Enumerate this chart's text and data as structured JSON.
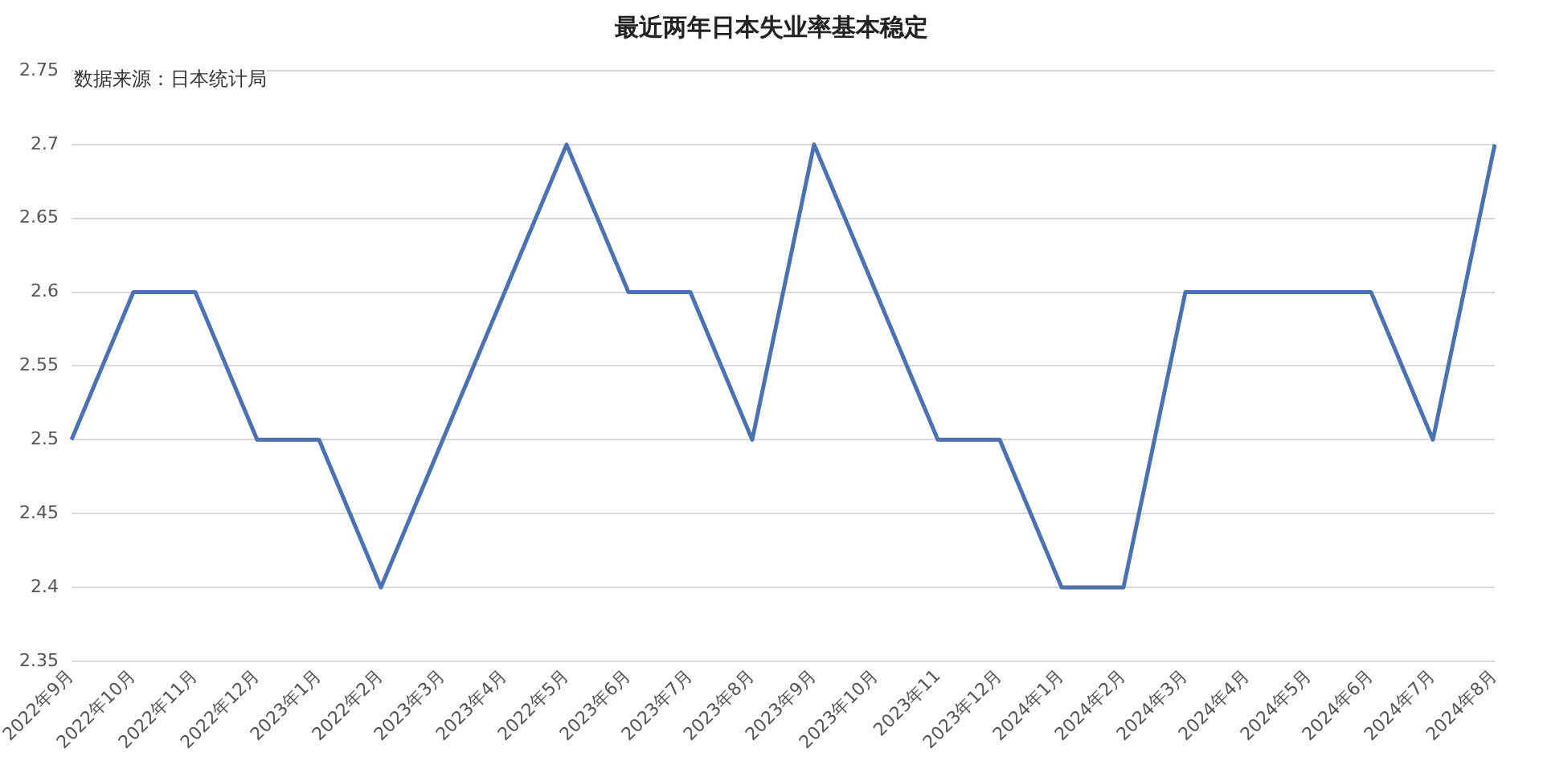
{
  "chart_data": {
    "type": "line",
    "title": "最近两年日本失业率基本稳定",
    "annotations": [
      "数据来源：日本统计局"
    ],
    "categories": [
      "2022年9月",
      "2022年10月",
      "2022年11月",
      "2022年12月",
      "2023年1月",
      "2022年2月",
      "2023年3月",
      "2023年4月",
      "2022年5月",
      "2023年6月",
      "2023年7月",
      "2023年8月",
      "2023年9月",
      "2023年10月",
      "2023年11",
      "2023年12月",
      "2024年1月",
      "2024年2月",
      "2024年3月",
      "2024年4月",
      "2024年5月",
      "2024年6月",
      "2024年7月",
      "2024年8月"
    ],
    "series": [
      {
        "color": "#4a72b2",
        "values": [
          2.5,
          2.6,
          2.6,
          2.5,
          2.5,
          2.4,
          2.5,
          2.6,
          2.7,
          2.6,
          2.6,
          2.5,
          2.7,
          2.6,
          2.5,
          2.5,
          2.4,
          2.4,
          2.6,
          2.6,
          2.6,
          2.6,
          2.5,
          2.7
        ]
      }
    ],
    "ylim": [
      2.35,
      2.75
    ],
    "yticks": [
      2.35,
      2.4,
      2.45,
      2.5,
      2.55,
      2.6,
      2.65,
      2.7,
      2.75
    ],
    "grid": "y",
    "legend": false,
    "marker": "none",
    "line_style": "solid"
  }
}
